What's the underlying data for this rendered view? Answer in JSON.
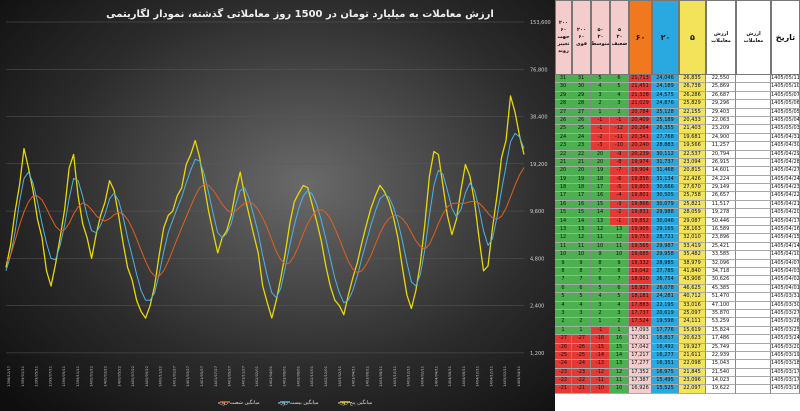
{
  "chart_data": {
    "type": "line",
    "title": "ارزش معاملات  به میلیارد تومان در 1500 روز معاملاتی گذشته، نمودار لگاریتمی",
    "y_scale": "log",
    "y_ticks": [
      1200,
      2400,
      4800,
      9600,
      19200,
      38400,
      76800,
      153600
    ],
    "y_tick_labels": [
      "1,200",
      "2,400",
      "4,800",
      "9,600",
      "19,200",
      "38,400",
      "76,800",
      "153,600"
    ],
    "x_tick_labels": [
      "1398/12/17",
      "1399/03/11",
      "1399/05/11",
      "1399/07/11",
      "1399/09/11",
      "1399/11/11",
      "1400/01/22",
      "1400/03/22",
      "1400/05/22",
      "1400/07/22",
      "1400/09/22",
      "1400/11/22",
      "1401/01/27",
      "1401/03/27",
      "1401/05/27",
      "1401/07/27",
      "1401/09/27",
      "1401/11/27",
      "1402/02/01",
      "1402/04/01",
      "1402/06/01",
      "1402/08/01",
      "1402/10/01",
      "1402/12/01",
      "1403/02/11",
      "1403/04/11",
      "1403/06/11",
      "1403/08/11",
      "1403/10/11",
      "1403/12/11",
      "1404/02/11",
      "1404/04/11",
      "1404/06/11",
      "1404/08/11",
      "1404/10/11",
      "1404/12/11",
      "1405/02/11",
      "1405/04/11"
    ],
    "legend_position": "bottom",
    "series": [
      {
        "name": "میانگین پنج روزه",
        "color": "#e8d800",
        "values": [
          4200,
          5800,
          9500,
          14000,
          24000,
          18000,
          13000,
          8500,
          6500,
          4000,
          3200,
          4400,
          6500,
          9800,
          18000,
          22000,
          12000,
          8000,
          6500,
          4800,
          6800,
          9000,
          11000,
          15000,
          13000,
          9000,
          6000,
          4200,
          3500,
          2600,
          2200,
          2000,
          2400,
          3200,
          5000,
          7500,
          9000,
          9600,
          12000,
          13500,
          19000,
          22000,
          27000,
          21000,
          14000,
          9500,
          7000,
          5200,
          6500,
          7200,
          9000,
          13000,
          17000,
          12000,
          9000,
          6800,
          5200,
          3200,
          2500,
          2000,
          2600,
          3600,
          5200,
          8000,
          11000,
          12500,
          14000,
          13500,
          10500,
          8200,
          6200,
          4300,
          3200,
          2600,
          2400,
          2100,
          2800,
          3600,
          4500,
          6000,
          7800,
          10000,
          12000,
          14000,
          12800,
          11000,
          8800,
          6500,
          4200,
          2800,
          2300,
          3000,
          4500,
          8000,
          16000,
          23000,
          22000,
          14000,
          9000,
          6800,
          8500,
          13000,
          19000,
          16000,
          11000,
          6500,
          4000,
          4300,
          7500,
          12000,
          21000,
          27000,
          52000,
          41000,
          29000,
          22000
        ]
      },
      {
        "name": "میانگین بیست روزه",
        "color": "#4fb3e0",
        "values": [
          4000,
          5000,
          7000,
          11000,
          15500,
          17000,
          14500,
          11000,
          8000,
          6000,
          4800,
          4700,
          5800,
          7800,
          11500,
          15500,
          15000,
          12000,
          9000,
          7200,
          7000,
          7800,
          9200,
          11500,
          12500,
          11200,
          8800,
          6500,
          5000,
          3800,
          3000,
          2600,
          2600,
          2900,
          3800,
          5300,
          7000,
          8400,
          10000,
          11800,
          14500,
          17500,
          20500,
          20000,
          16500,
          12500,
          9200,
          7000,
          6500,
          6900,
          8000,
          10500,
          13000,
          13500,
          11500,
          9000,
          7000,
          5000,
          3700,
          2900,
          2700,
          3100,
          4200,
          5800,
          7800,
          10000,
          12000,
          13000,
          12300,
          10500,
          8400,
          6400,
          4800,
          3600,
          2900,
          2500,
          2600,
          3000,
          3700,
          4800,
          6100,
          7800,
          9600,
          11500,
          12200,
          11800,
          10200,
          8200,
          6200,
          4500,
          3400,
          3200,
          3800,
          5500,
          9000,
          14000,
          17500,
          16500,
          13000,
          10000,
          8800,
          9800,
          12500,
          14500,
          13000,
          10000,
          7200,
          5800,
          6400,
          8800,
          13000,
          18500,
          26500,
          30000,
          28500,
          24000
        ]
      },
      {
        "name": "میانگین شصت روزه",
        "color": "#e0601e",
        "values": [
          4500,
          5000,
          6200,
          7800,
          9500,
          11000,
          12000,
          12000,
          11300,
          10000,
          8700,
          7700,
          7200,
          7300,
          8000,
          9200,
          10200,
          10800,
          10500,
          9800,
          9000,
          8500,
          8300,
          8600,
          9100,
          9400,
          9200,
          8500,
          7500,
          6400,
          5400,
          4600,
          4000,
          3700,
          3700,
          4000,
          4600,
          5400,
          6400,
          7500,
          8800,
          10300,
          12000,
          13500,
          14200,
          14000,
          13000,
          11800,
          10600,
          9800,
          9400,
          9600,
          10200,
          10800,
          11000,
          10600,
          9800,
          8700,
          7500,
          6300,
          5300,
          4700,
          4400,
          4500,
          5000,
          5800,
          6900,
          8000,
          9000,
          9700,
          9800,
          9400,
          8600,
          7500,
          6400,
          5400,
          4600,
          4100,
          3900,
          4000,
          4400,
          5000,
          5900,
          6900,
          7900,
          8600,
          9000,
          9000,
          8600,
          7900,
          7000,
          6200,
          5700,
          5500,
          5900,
          6800,
          8000,
          9200,
          10200,
          10700,
          10800,
          10700,
          10800,
          11000,
          11100,
          10800,
          10100,
          9300,
          8700,
          8500,
          8900,
          10000,
          11800,
          14000,
          16300,
          18200
        ]
      }
    ]
  },
  "table": {
    "headers": {
      "c0": "۲۰۰\n۶۰\nجهت تغییر روند",
      "c1": "۲۰۰\n۶۰\nقوی",
      "c2": "۵۰\n۲۰\nمتوسط",
      "c3": "۵\n۲۰\nضعیف",
      "c4": "۶۰",
      "c5": "۲۰",
      "c6": "۵",
      "c7": "ارزش\nمعاملات",
      "c8": "ارزش\nمعاملات",
      "c9": "تاریخ"
    },
    "colors": {
      "green": "#4caf50",
      "red": "#e53935",
      "yellow": "#f2e35a",
      "sky": "#29a9e0",
      "orange": "#f0781e",
      "paleGreen": "#d7ebc5",
      "paleRed": "#f4cccc",
      "white": "#ffffff"
    },
    "rows": [
      {
        "c0": "31",
        "c1": "31",
        "c2": "5",
        "c3": "6",
        "c4": "21,713",
        "c5": "24,046",
        "c6": "26,835",
        "c7": "22,550",
        "c9": "1405/05/11"
      },
      {
        "c0": "30",
        "c1": "30",
        "c2": "4",
        "c3": "5",
        "c4": "21,451",
        "c5": "24,189",
        "c6": "26,738",
        "c7": "25,869",
        "c9": "1405/05/10"
      },
      {
        "c0": "29",
        "c1": "29",
        "c2": "3",
        "c3": "4",
        "c4": "21,328",
        "c5": "24,575",
        "c6": "26,286",
        "c7": "26,687",
        "c9": "1405/05/07"
      },
      {
        "c0": "28",
        "c1": "28",
        "c2": "2",
        "c3": "3",
        "c4": "21,029",
        "c5": "24,876",
        "c6": "25,829",
        "c7": "29,296",
        "c9": "1405/05/06"
      },
      {
        "c0": "27",
        "c1": "27",
        "c2": "1",
        "c3": "2",
        "c4": "20,784",
        "c5": "25,128",
        "c6": "22,155",
        "c7": "29,403",
        "c9": "1405/05/05"
      },
      {
        "c0": "26",
        "c1": "26",
        "c2": "-1",
        "c3": "-1",
        "c4": "20,409",
        "c5": "25,189",
        "c6": "20,433",
        "c7": "22,063",
        "c9": "1405/05/04"
      },
      {
        "c0": "25",
        "c1": "25",
        "c2": "-1",
        "c3": "-12",
        "c4": "20,264",
        "c5": "26,355",
        "c6": "21,403",
        "c7": "23,209",
        "c9": "1405/05/03"
      },
      {
        "c0": "24",
        "c1": "24",
        "c2": "-2",
        "c3": "-11",
        "c4": "20,341",
        "c5": "27,768",
        "c6": "19,681",
        "c7": "24,900",
        "c9": "1405/04/31"
      },
      {
        "c0": "23",
        "c1": "23",
        "c2": "-3",
        "c3": "-10",
        "c4": "20,240",
        "c5": "28,883",
        "c6": "19,566",
        "c7": "11,257",
        "c9": "1405/04/30"
      },
      {
        "c0": "22",
        "c1": "22",
        "c2": "20",
        "c3": "-9",
        "c4": "20,239",
        "c5": "30,112",
        "c6": "22,537",
        "c7": "20,794",
        "c9": "1405/04/29"
      },
      {
        "c0": "21",
        "c1": "21",
        "c2": "20",
        "c3": "-8",
        "c4": "19,974",
        "c5": "31,737",
        "c6": "23,094",
        "c7": "26,915",
        "c9": "1405/04/28"
      },
      {
        "c0": "20",
        "c1": "20",
        "c2": "19",
        "c3": "-7",
        "c4": "19,904",
        "c5": "31,468",
        "c6": "20,815",
        "c7": "14,601",
        "c9": "1405/04/27"
      },
      {
        "c0": "19",
        "c1": "19",
        "c2": "18",
        "c3": "-6",
        "c4": "19,856",
        "c5": "31,134",
        "c6": "22,426",
        "c7": "24,224",
        "c9": "1405/04/24"
      },
      {
        "c0": "18",
        "c1": "18",
        "c2": "17",
        "c3": "-5",
        "c4": "19,803",
        "c5": "30,666",
        "c6": "27,670",
        "c7": "29,149",
        "c9": "1405/04/23"
      },
      {
        "c0": "17",
        "c1": "17",
        "c2": "16",
        "c3": "-4",
        "c4": "19,801",
        "c5": "30,505",
        "c6": "25,758",
        "c7": "26,657",
        "c9": "1405/04/22"
      },
      {
        "c0": "16",
        "c1": "16",
        "c2": "15",
        "c3": "-3",
        "c4": "19,866",
        "c5": "30,079",
        "c6": "25,821",
        "c7": "11,517",
        "c9": "1405/04/21"
      },
      {
        "c0": "15",
        "c1": "15",
        "c2": "14",
        "c3": "-2",
        "c4": "19,831",
        "c5": "29,988",
        "c6": "28,059",
        "c7": "19,278",
        "c9": "1405/04/20"
      },
      {
        "c0": "14",
        "c1": "14",
        "c2": "13",
        "c3": "-1",
        "c4": "19,852",
        "c5": "30,046",
        "c6": "29,087",
        "c7": "50,446",
        "c9": "1405/04/17"
      },
      {
        "c0": "13",
        "c1": "13",
        "c2": "12",
        "c3": "13",
        "c4": "19,905",
        "c5": "29,165",
        "c6": "28,163",
        "c7": "16,589",
        "c9": "1405/04/16"
      },
      {
        "c0": "12",
        "c1": "12",
        "c2": "11",
        "c3": "12",
        "c4": "19,753",
        "c5": "28,721",
        "c6": "32,010",
        "c7": "23,896",
        "c9": "1405/04/15"
      },
      {
        "c0": "11",
        "c1": "11",
        "c2": "10",
        "c3": "11",
        "c4": "19,565",
        "c5": "29,987",
        "c6": "33,419",
        "c7": "25,421",
        "c9": "1405/04/14"
      },
      {
        "c0": "10",
        "c1": "10",
        "c2": "9",
        "c3": "10",
        "c4": "19,685",
        "c5": "29,958",
        "c6": "35,482",
        "c7": "33,585",
        "c9": "1405/04/10"
      },
      {
        "c0": "9",
        "c1": "9",
        "c2": "8",
        "c3": "9",
        "c4": "19,332",
        "c5": "28,985",
        "c6": "38,979",
        "c7": "32,096",
        "c9": "1405/04/07"
      },
      {
        "c0": "8",
        "c1": "8",
        "c2": "7",
        "c3": "8",
        "c4": "19,042",
        "c5": "27,785",
        "c6": "41,840",
        "c7": "34,718",
        "c9": "1405/04/03"
      },
      {
        "c0": "7",
        "c1": "7",
        "c2": "6",
        "c3": "7",
        "c4": "18,920",
        "c5": "26,754",
        "c6": "43,908",
        "c7": "30,626",
        "c9": "1405/04/02"
      },
      {
        "c0": "6",
        "c1": "6",
        "c2": "5",
        "c3": "6",
        "c4": "18,927",
        "c5": "26,078",
        "c6": "46,625",
        "c7": "45,385",
        "c9": "1405/04/01"
      },
      {
        "c0": "5",
        "c1": "5",
        "c2": "4",
        "c3": "5",
        "c4": "18,181",
        "c5": "24,281",
        "c6": "40,712",
        "c7": "51,470",
        "c9": "1405/03/31"
      },
      {
        "c0": "4",
        "c1": "4",
        "c2": "3",
        "c3": "4",
        "c4": "17,883",
        "c5": "22,195",
        "c6": "33,016",
        "c7": "47,100",
        "c9": "1405/03/30"
      },
      {
        "c0": "3",
        "c1": "3",
        "c2": "2",
        "c3": "3",
        "c4": "17,737",
        "c5": "20,619",
        "c6": "25,097",
        "c7": "35,870",
        "c9": "1405/03/27"
      },
      {
        "c0": "2",
        "c1": "2",
        "c2": "1",
        "c3": "2",
        "c4": "17,524",
        "c5": "19,598",
        "c6": "24,111",
        "c7": "53,259",
        "c9": "1405/03/26"
      },
      {
        "c0": "1",
        "c1": "1",
        "c2": "-1",
        "c3": "1",
        "c4": "17,093",
        "c5": "17,776",
        "c6": "15,619",
        "c7": "15,824",
        "c9": "1405/03/25"
      },
      {
        "c0": "-27",
        "c1": "-27",
        "c2": "-16",
        "c3": "16",
        "c4": "17,061",
        "c5": "16,817",
        "c6": "20,623",
        "c7": "17,486",
        "c9": "1405/03/24"
      },
      {
        "c0": "-26",
        "c1": "-26",
        "c2": "-15",
        "c3": "15",
        "c4": "17,042",
        "c5": "16,492",
        "c6": "19,927",
        "c7": "25,749",
        "c9": "1405/03/20"
      },
      {
        "c0": "-25",
        "c1": "-25",
        "c2": "-14",
        "c3": "14",
        "c4": "17,217",
        "c5": "16,277",
        "c6": "21,611",
        "c7": "22,939",
        "c9": "1405/03/19"
      },
      {
        "c0": "-24",
        "c1": "-24",
        "c2": "-13",
        "c3": "13",
        "c4": "17,277",
        "c5": "16,351",
        "c6": "22,098",
        "c7": "15,043",
        "c9": "1405/03/18"
      },
      {
        "c0": "-23",
        "c1": "-23",
        "c2": "-12",
        "c3": "12",
        "c4": "17,352",
        "c5": "16,975",
        "c6": "21,845",
        "c7": "21,540",
        "c9": "1405/03/17"
      },
      {
        "c0": "-22",
        "c1": "-22",
        "c2": "-11",
        "c3": "11",
        "c4": "17,387",
        "c5": "15,495",
        "c6": "23,096",
        "c7": "14,023",
        "c9": "1405/03/17"
      },
      {
        "c0": "-21",
        "c1": "-21",
        "c2": "-10",
        "c3": "10",
        "c4": "16,926",
        "c5": "15,525",
        "c6": "22,097",
        "c7": "19,622",
        "c9": "1405/03/16"
      }
    ]
  }
}
